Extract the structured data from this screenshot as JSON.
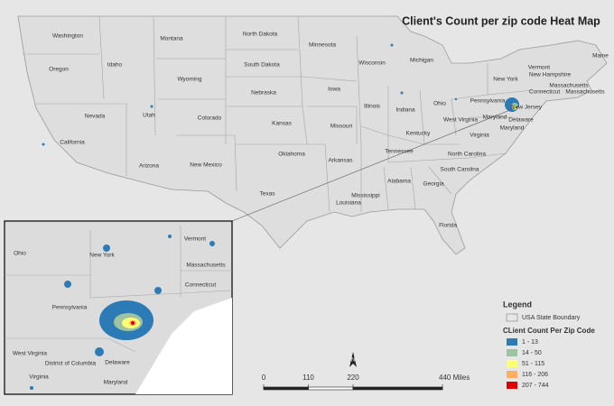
{
  "title": "Client's Count per zip code Heat Map",
  "states": [
    "Washington",
    "Montana",
    "North Dakota",
    "Minnesota",
    "Wisconsin",
    "Michigan",
    "Maine",
    "Vermont",
    "New Hampshire",
    "New York",
    "Massachusetts",
    "Connecticut",
    "Massachusetts",
    "Oregon",
    "Idaho",
    "Wyoming",
    "South Dakota",
    "Iowa",
    "Nebraska",
    "Pennsylvania",
    "New Jersey",
    "Ohio",
    "Indiana",
    "Illinois",
    "Nevada",
    "Utah",
    "Colorado",
    "Kansas",
    "Missouri",
    "Maryland",
    "Delaware",
    "Maryland",
    "West Virginia",
    "Virginia",
    "Kentucky",
    "California",
    "Oklahoma",
    "Tennessee",
    "North Carolina",
    "Arizona",
    "New Mexico",
    "Arkansas",
    "South Carolina",
    "Alabama",
    "Georgia",
    "Mississippi",
    "Texas",
    "Louisiana",
    "Florida"
  ],
  "inset_labels": [
    "Ohio",
    "New York",
    "Vermont",
    "Massachusetts",
    "Connecticut",
    "Pennsylvania",
    "West Virginia",
    "District of Columbia",
    "Delaware",
    "Virginia",
    "Maryland"
  ],
  "legend": {
    "title": "Legend",
    "boundary": "USA State Boundary",
    "subtitle": "CLient Count Per Zip Code",
    "classes": [
      {
        "label": "1 - 13",
        "color": "#2c7bb6"
      },
      {
        "label": "14 - 50",
        "color": "#9dc3a0"
      },
      {
        "label": "51 - 115",
        "color": "#ffff73"
      },
      {
        "label": "116 - 206",
        "color": "#fdae61"
      },
      {
        "label": "207 - 744",
        "color": "#e00000"
      }
    ]
  },
  "scale_bar": {
    "ticks": [
      0,
      110,
      220,
      {
        "value": 440,
        "label": "440 Miles"
      }
    ],
    "north": "N"
  }
}
